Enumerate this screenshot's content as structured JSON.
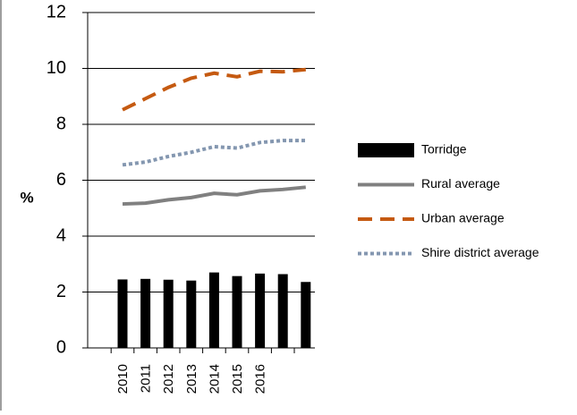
{
  "chart_data": {
    "type": "bar",
    "title": "",
    "xlabel": "",
    "ylabel": "%",
    "ylim": [
      0,
      12
    ],
    "yticks": [
      "0",
      "2",
      "4",
      "6",
      "8",
      "10",
      "12"
    ],
    "categories": [
      "2010",
      "2011",
      "2012",
      "2013",
      "2014",
      "2015",
      "2016",
      "",
      ""
    ],
    "grid": "horizontal",
    "legend_position": "right",
    "series": [
      {
        "name": "Torridge",
        "kind": "bar",
        "color": "#000000",
        "values": [
          2.45,
          2.47,
          2.44,
          2.41,
          2.7,
          2.57,
          2.66,
          2.64,
          2.36
        ]
      },
      {
        "name": "Rural average",
        "kind": "line",
        "style": "solid",
        "color": "#808080",
        "values": [
          5.15,
          5.18,
          5.3,
          5.38,
          5.53,
          5.48,
          5.62,
          5.67,
          5.75
        ]
      },
      {
        "name": "Urban average",
        "kind": "line",
        "style": "dashed",
        "color": "#c55a11",
        "values": [
          8.52,
          8.92,
          9.32,
          9.65,
          9.83,
          9.7,
          9.9,
          9.88,
          9.96
        ]
      },
      {
        "name": "Shire district average",
        "kind": "line",
        "style": "dotted",
        "color": "#8497b0",
        "values": [
          6.55,
          6.65,
          6.85,
          7.0,
          7.2,
          7.15,
          7.35,
          7.42,
          7.42
        ]
      }
    ]
  }
}
